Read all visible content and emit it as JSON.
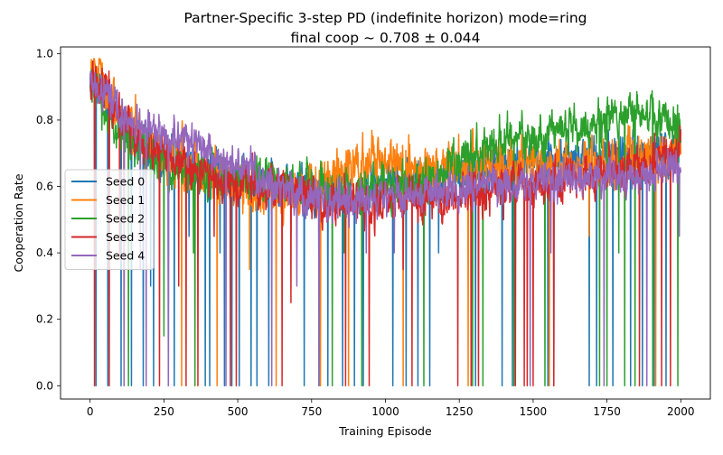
{
  "chart_data": {
    "type": "line",
    "title": "Partner-Specific 3-step PD (indefinite horizon) mode=ring",
    "subtitle": "final coop ~ 0.708 ± 0.044",
    "xlabel": "Training Episode",
    "ylabel": "Cooperation Rate",
    "xlim": [
      -100,
      2100
    ],
    "ylim": [
      -0.04,
      1.02
    ],
    "xticks": [
      0,
      250,
      500,
      750,
      1000,
      1250,
      1500,
      1750,
      2000
    ],
    "yticks": [
      0.0,
      0.2,
      0.4,
      0.6,
      0.8,
      1.0
    ],
    "grid": false,
    "legend_position": "center-left",
    "episodes": 2000,
    "series": [
      {
        "name": "Seed 0",
        "color": "#1f77b4",
        "trend": [
          [
            0,
            0.9
          ],
          [
            60,
            0.86
          ],
          [
            150,
            0.74
          ],
          [
            300,
            0.67
          ],
          [
            500,
            0.62
          ],
          [
            700,
            0.6
          ],
          [
            800,
            0.58
          ],
          [
            1000,
            0.6
          ],
          [
            1200,
            0.63
          ],
          [
            1400,
            0.66
          ],
          [
            1600,
            0.68
          ],
          [
            1800,
            0.7
          ],
          [
            2000,
            0.7
          ]
        ],
        "noise": 0.04,
        "drop_episodes": [
          20,
          60,
          105,
          140,
          180,
          215,
          265,
          285,
          390,
          405,
          455,
          480,
          505,
          545,
          565,
          605,
          725,
          775,
          805,
          855,
          895,
          925,
          1025,
          1070,
          1110,
          1150,
          1305,
          1395,
          1430,
          1550,
          1570,
          1690,
          1715,
          1770,
          1830,
          1870,
          1910,
          1950
        ],
        "dip_values": [
          [
            205,
            0.3
          ],
          [
            335,
            0.45
          ],
          [
            440,
            0.4
          ],
          [
            680,
            0.45
          ],
          [
            1180,
            0.4
          ]
        ]
      },
      {
        "name": "Seed 1",
        "color": "#ff7f0e",
        "trend": [
          [
            0,
            0.93
          ],
          [
            30,
            0.94
          ],
          [
            80,
            0.84
          ],
          [
            200,
            0.72
          ],
          [
            400,
            0.64
          ],
          [
            550,
            0.58
          ],
          [
            650,
            0.56
          ],
          [
            800,
            0.62
          ],
          [
            950,
            0.68
          ],
          [
            1100,
            0.65
          ],
          [
            1300,
            0.66
          ],
          [
            1500,
            0.67
          ],
          [
            1700,
            0.67
          ],
          [
            1900,
            0.68
          ],
          [
            2000,
            0.7
          ]
        ],
        "noise": 0.045,
        "drop_episodes": [
          115,
          310,
          430,
          630,
          780,
          875,
          1060,
          1280,
          1555,
          1915
        ],
        "dip_values": [
          [
            540,
            0.35
          ],
          [
            1690,
            0.45
          ]
        ]
      },
      {
        "name": "Seed 2",
        "color": "#2ca02c",
        "trend": [
          [
            0,
            0.91
          ],
          [
            50,
            0.82
          ],
          [
            150,
            0.72
          ],
          [
            300,
            0.64
          ],
          [
            500,
            0.62
          ],
          [
            700,
            0.6
          ],
          [
            850,
            0.58
          ],
          [
            1000,
            0.59
          ],
          [
            1150,
            0.62
          ],
          [
            1300,
            0.7
          ],
          [
            1450,
            0.75
          ],
          [
            1600,
            0.76
          ],
          [
            1750,
            0.8
          ],
          [
            1900,
            0.82
          ],
          [
            2000,
            0.78
          ]
        ],
        "noise": 0.04,
        "drop_episodes": [
          130,
          355,
          775,
          820,
          920,
          1130,
          1295,
          1330,
          1435,
          1540,
          1725,
          1750,
          1810,
          1845,
          1905,
          1990
        ],
        "dip_values": [
          [
            40,
            0.77
          ],
          [
            250,
            0.15
          ],
          [
            350,
            0.4
          ],
          [
            860,
            0.4
          ],
          [
            1790,
            0.4
          ]
        ]
      },
      {
        "name": "Seed 3",
        "color": "#d62728",
        "trend": [
          [
            0,
            0.92
          ],
          [
            60,
            0.89
          ],
          [
            150,
            0.74
          ],
          [
            300,
            0.67
          ],
          [
            500,
            0.61
          ],
          [
            700,
            0.58
          ],
          [
            850,
            0.55
          ],
          [
            1000,
            0.55
          ],
          [
            1200,
            0.57
          ],
          [
            1400,
            0.6
          ],
          [
            1600,
            0.62
          ],
          [
            1800,
            0.65
          ],
          [
            2000,
            0.7
          ]
        ],
        "noise": 0.04,
        "drop_episodes": [
          15,
          65,
          235,
          325,
          365,
          475,
          495,
          650,
          865,
          945,
          1090,
          1245,
          1290,
          1315,
          1440,
          1470,
          1480,
          1500,
          1570,
          1860,
          1935,
          1965
        ],
        "dip_values": [
          [
            100,
            0.38
          ],
          [
            300,
            0.3
          ],
          [
            420,
            0.45
          ],
          [
            680,
            0.25
          ],
          [
            1060,
            0.35
          ],
          [
            1400,
            0.5
          ]
        ]
      },
      {
        "name": "Seed 4",
        "color": "#9467bd",
        "trend": [
          [
            0,
            0.9
          ],
          [
            60,
            0.88
          ],
          [
            120,
            0.8
          ],
          [
            200,
            0.77
          ],
          [
            300,
            0.75
          ],
          [
            400,
            0.7
          ],
          [
            500,
            0.66
          ],
          [
            600,
            0.62
          ],
          [
            700,
            0.58
          ],
          [
            800,
            0.55
          ],
          [
            900,
            0.55
          ],
          [
            1000,
            0.56
          ],
          [
            1200,
            0.59
          ],
          [
            1400,
            0.61
          ],
          [
            1600,
            0.62
          ],
          [
            1800,
            0.63
          ],
          [
            2000,
            0.65
          ]
        ],
        "noise": 0.035,
        "drop_episodes": [
          115,
          190,
          265,
          460,
          615,
          775,
          1490,
          1740,
          1885
        ],
        "dip_values": [
          [
            170,
            0.35
          ],
          [
            700,
            0.3
          ],
          [
            935,
            0.4
          ],
          [
            1030,
            0.4
          ],
          [
            1490,
            0.4
          ],
          [
            1560,
            0.4
          ],
          [
            1995,
            0.45
          ]
        ]
      }
    ]
  }
}
